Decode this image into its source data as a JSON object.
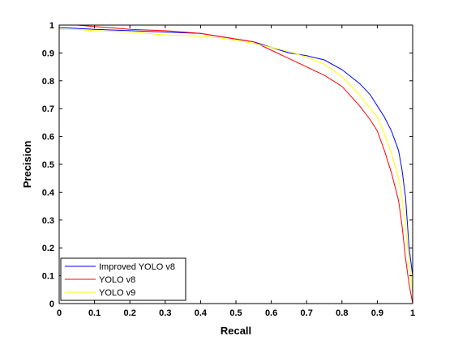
{
  "chart_data": {
    "type": "line",
    "xlabel": "Recall",
    "ylabel": "Precision",
    "xlim": [
      0,
      1
    ],
    "ylim": [
      0,
      1
    ],
    "x_ticks": [
      "0",
      "0.1",
      "0.2",
      "0.3",
      "0.4",
      "0.5",
      "0.6",
      "0.7",
      "0.8",
      "0.9",
      "1"
    ],
    "y_ticks": [
      "0",
      "0.1",
      "0.2",
      "0.3",
      "0.4",
      "0.5",
      "0.6",
      "0.7",
      "0.8",
      "0.9",
      "1"
    ],
    "grid": false,
    "legend_position": "bottom-left",
    "series": [
      {
        "name": "Improved YOLO v8",
        "color": "#0000ff",
        "x": [
          0,
          0.02,
          0.1,
          0.2,
          0.3,
          0.4,
          0.45,
          0.5,
          0.55,
          0.6,
          0.65,
          0.7,
          0.75,
          0.8,
          0.85,
          0.88,
          0.9,
          0.92,
          0.94,
          0.96,
          0.97,
          0.98,
          0.99,
          1.0,
          1.0
        ],
        "y": [
          0.99,
          0.99,
          0.985,
          0.98,
          0.975,
          0.97,
          0.96,
          0.95,
          0.94,
          0.92,
          0.9,
          0.89,
          0.875,
          0.84,
          0.79,
          0.75,
          0.71,
          0.67,
          0.62,
          0.55,
          0.48,
          0.38,
          0.2,
          0.1,
          0.01
        ]
      },
      {
        "name": "YOLO v8",
        "color": "#ff0000",
        "x": [
          0,
          0.05,
          0.1,
          0.2,
          0.3,
          0.4,
          0.45,
          0.5,
          0.55,
          0.6,
          0.65,
          0.7,
          0.75,
          0.8,
          0.85,
          0.88,
          0.9,
          0.92,
          0.94,
          0.96,
          0.97,
          0.98,
          0.99,
          1.0
        ],
        "y": [
          1.0,
          1.0,
          0.995,
          0.985,
          0.98,
          0.97,
          0.96,
          0.95,
          0.94,
          0.91,
          0.88,
          0.85,
          0.82,
          0.78,
          0.71,
          0.66,
          0.62,
          0.55,
          0.47,
          0.37,
          0.28,
          0.16,
          0.07,
          0.0
        ]
      },
      {
        "name": "YOLO v9",
        "color": "#ffff00",
        "x": [
          0,
          0.05,
          0.1,
          0.2,
          0.3,
          0.4,
          0.45,
          0.5,
          0.55,
          0.6,
          0.65,
          0.7,
          0.75,
          0.8,
          0.85,
          0.88,
          0.9,
          0.92,
          0.94,
          0.96,
          0.97,
          0.98,
          0.99,
          1.0
        ],
        "y": [
          0.985,
          0.985,
          0.98,
          0.975,
          0.965,
          0.96,
          0.955,
          0.945,
          0.935,
          0.92,
          0.905,
          0.885,
          0.86,
          0.815,
          0.75,
          0.7,
          0.67,
          0.61,
          0.54,
          0.45,
          0.38,
          0.28,
          0.15,
          0.04
        ]
      }
    ]
  }
}
